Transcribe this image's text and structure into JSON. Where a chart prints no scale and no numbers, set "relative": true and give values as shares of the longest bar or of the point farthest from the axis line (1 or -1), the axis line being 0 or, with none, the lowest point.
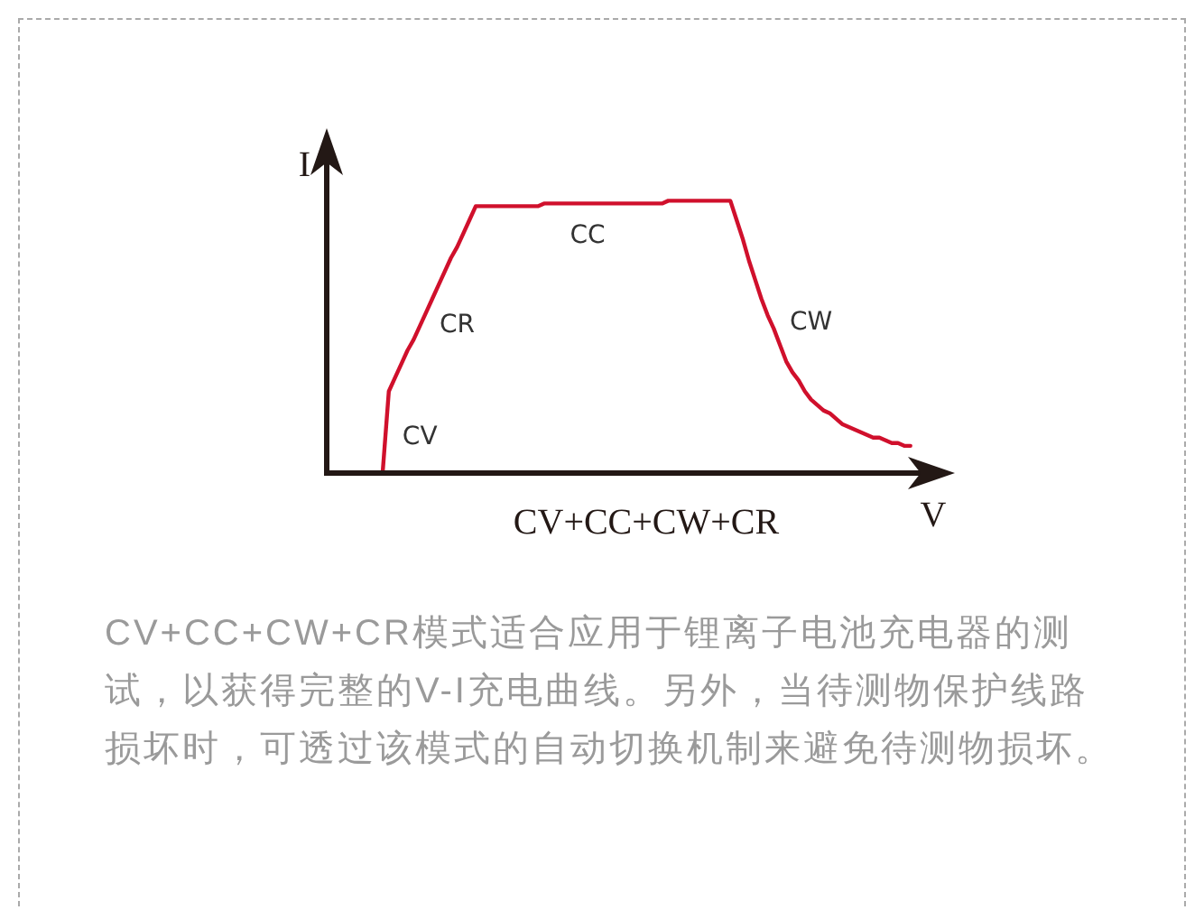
{
  "chart_data": {
    "type": "line",
    "relative": true,
    "title": "CV+CC+CW+CR",
    "xlabel": "V",
    "ylabel": "I",
    "legend": false,
    "marker": "none",
    "line_style": "solid",
    "categories": [
      null,
      null,
      null,
      null,
      null,
      null,
      null,
      null,
      null,
      null,
      null,
      null,
      null,
      null,
      null,
      null,
      null,
      null,
      null,
      null,
      null,
      null,
      null,
      null,
      null,
      null,
      null,
      null,
      null,
      null,
      null,
      null,
      null,
      null,
      null,
      null,
      null,
      null,
      null,
      null,
      null,
      null,
      null,
      null,
      null,
      null,
      null,
      null,
      null,
      null,
      null,
      null,
      null,
      null,
      null,
      null,
      null,
      null,
      null,
      null,
      null,
      null,
      null,
      null,
      null,
      null,
      null,
      null,
      null,
      null,
      null,
      null,
      null,
      null,
      null,
      null,
      null,
      null,
      null,
      null,
      null,
      null,
      null,
      null,
      null,
      null,
      null,
      null,
      null,
      null,
      null,
      null,
      null,
      null,
      null,
      null,
      null,
      null,
      null,
      null,
      null
    ],
    "series": [
      {
        "color": "#d0102c",
        "values": [
          null,
          null,
          null,
          null,
          null,
          null,
          null,
          null,
          null,
          0,
          0.3,
          0.35,
          0.4,
          0.45,
          0.49,
          0.54,
          0.59,
          0.64,
          0.69,
          0.74,
          0.79,
          0.83,
          0.88,
          0.93,
          0.98,
          0.98,
          0.98,
          0.98,
          0.98,
          0.98,
          0.98,
          0.98,
          0.98,
          0.98,
          0.98,
          0.99,
          0.99,
          0.99,
          0.99,
          0.99,
          0.99,
          0.99,
          0.99,
          0.99,
          0.99,
          0.99,
          0.99,
          0.99,
          0.99,
          0.99,
          0.99,
          0.99,
          0.99,
          0.99,
          0.99,
          1,
          1,
          1,
          1,
          1,
          1,
          1,
          1,
          1,
          1,
          1,
          0.93,
          0.86,
          0.78,
          0.71,
          0.64,
          0.58,
          0.53,
          0.47,
          0.41,
          0.37,
          0.34,
          0.3,
          0.27,
          0.25,
          0.23,
          0.22,
          0.2,
          0.18,
          0.17,
          0.16,
          0.15,
          0.14,
          0.13,
          0.13,
          0.12,
          0.11,
          0.11,
          0.1,
          0.1,
          null,
          null,
          null,
          null,
          null,
          null
        ]
      }
    ],
    "annotations": [
      "CV",
      "CR",
      "CC",
      "CW",
      "CV+CC+CW+CR模式适合应用于锂离子电池充电器的测试，以获得完整的V-I充电曲线。另外，当待测物保护线路损坏时，可透过该模式的自动切换机制来避免待测物损坏。"
    ]
  }
}
